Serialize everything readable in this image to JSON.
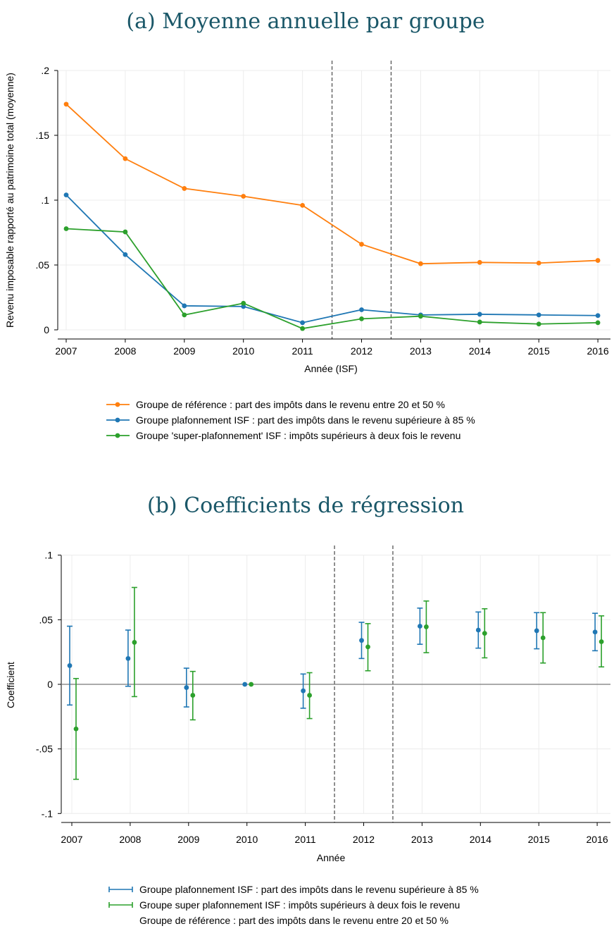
{
  "chart_data": [
    {
      "type": "line",
      "title": "(a) Moyenne annuelle par groupe",
      "xlabel": "Année (ISF)",
      "ylabel": "Revenu imposable rapporté au patrimoine total (moyenne)",
      "x": [
        2007,
        2008,
        2009,
        2010,
        2011,
        2012,
        2013,
        2014,
        2015,
        2016
      ],
      "x_ticks": [
        "2007",
        "2008",
        "2009",
        "2010",
        "2011",
        "2012",
        "2013",
        "2014",
        "2015",
        "2016"
      ],
      "ylim": [
        0,
        0.2
      ],
      "y_ticks": [
        0,
        0.05,
        0.1,
        0.15,
        0.2
      ],
      "y_tick_labels": [
        "0",
        ".05",
        ".1",
        ".15",
        ".2"
      ],
      "vlines": [
        2011.5,
        2012.5
      ],
      "grid": true,
      "legend_position": "bottom",
      "series": [
        {
          "name": "Groupe de référence : part des impôts dans le revenu entre 20 et 50 %",
          "color": "#ff7f0e",
          "values": [
            0.174,
            0.132,
            0.109,
            0.103,
            0.096,
            0.066,
            0.051,
            0.052,
            0.0515,
            0.0535
          ]
        },
        {
          "name": "Groupe plafonnement ISF : part des impôts dans le revenu supérieure à 85 %",
          "color": "#1f77b4",
          "values": [
            0.104,
            0.058,
            0.0185,
            0.018,
            0.0055,
            0.0155,
            0.0115,
            0.012,
            0.0115,
            0.011
          ]
        },
        {
          "name": "Groupe 'super-plafonnement' ISF : impôts supérieurs à deux fois le revenu",
          "color": "#2ca02c",
          "values": [
            0.078,
            0.0755,
            0.0115,
            0.0205,
            0.001,
            0.0085,
            0.0105,
            0.006,
            0.0045,
            0.0055
          ]
        }
      ]
    },
    {
      "type": "errorbar",
      "title": "(b) Coefficients de régression",
      "xlabel": "Année",
      "ylabel": "Coefficient",
      "x": [
        2007,
        2008,
        2009,
        2010,
        2011,
        2012,
        2013,
        2014,
        2015,
        2016
      ],
      "x_ticks": [
        "2007",
        "2008",
        "2009",
        "2010",
        "2011",
        "2012",
        "2013",
        "2014",
        "2015",
        "2016"
      ],
      "ylim": [
        -0.1,
        0.1
      ],
      "y_ticks": [
        -0.1,
        -0.05,
        0,
        0.05,
        0.1
      ],
      "y_tick_labels": [
        "-.1",
        "-.05",
        "0",
        ".05",
        ".1"
      ],
      "vlines": [
        2011.5,
        2012.5
      ],
      "hline": 0,
      "grid": true,
      "legend_position": "bottom",
      "series": [
        {
          "name": "Groupe plafonnement ISF : part des impôts dans le revenu supérieure à 85 %",
          "color": "#1f77b4",
          "values": [
            0.0145,
            0.02,
            -0.0025,
            0.0,
            -0.005,
            0.034,
            0.045,
            0.042,
            0.0415,
            0.0405
          ],
          "ci_low": [
            -0.016,
            -0.0015,
            -0.0175,
            0.0,
            -0.0185,
            0.02,
            0.031,
            0.028,
            0.0275,
            0.026
          ],
          "ci_high": [
            0.045,
            0.042,
            0.0125,
            0.0,
            0.008,
            0.048,
            0.059,
            0.056,
            0.0555,
            0.055
          ]
        },
        {
          "name": "Groupe super plafonnement ISF : impôts supérieurs à deux fois le revenu",
          "color": "#2ca02c",
          "values": [
            -0.0345,
            0.0325,
            -0.0085,
            0.0,
            -0.0085,
            0.029,
            0.0445,
            0.0395,
            0.036,
            0.033
          ],
          "ci_low": [
            -0.0735,
            -0.0095,
            -0.0275,
            0.0,
            -0.0265,
            0.0105,
            0.0245,
            0.0205,
            0.0165,
            0.0135
          ],
          "ci_high": [
            0.0045,
            0.075,
            0.01,
            0.0,
            0.009,
            0.047,
            0.0645,
            0.0585,
            0.0555,
            0.053
          ]
        }
      ],
      "legend_extra": "Groupe de référence : part des impôts dans le revenu entre 20 et 50 %"
    }
  ]
}
